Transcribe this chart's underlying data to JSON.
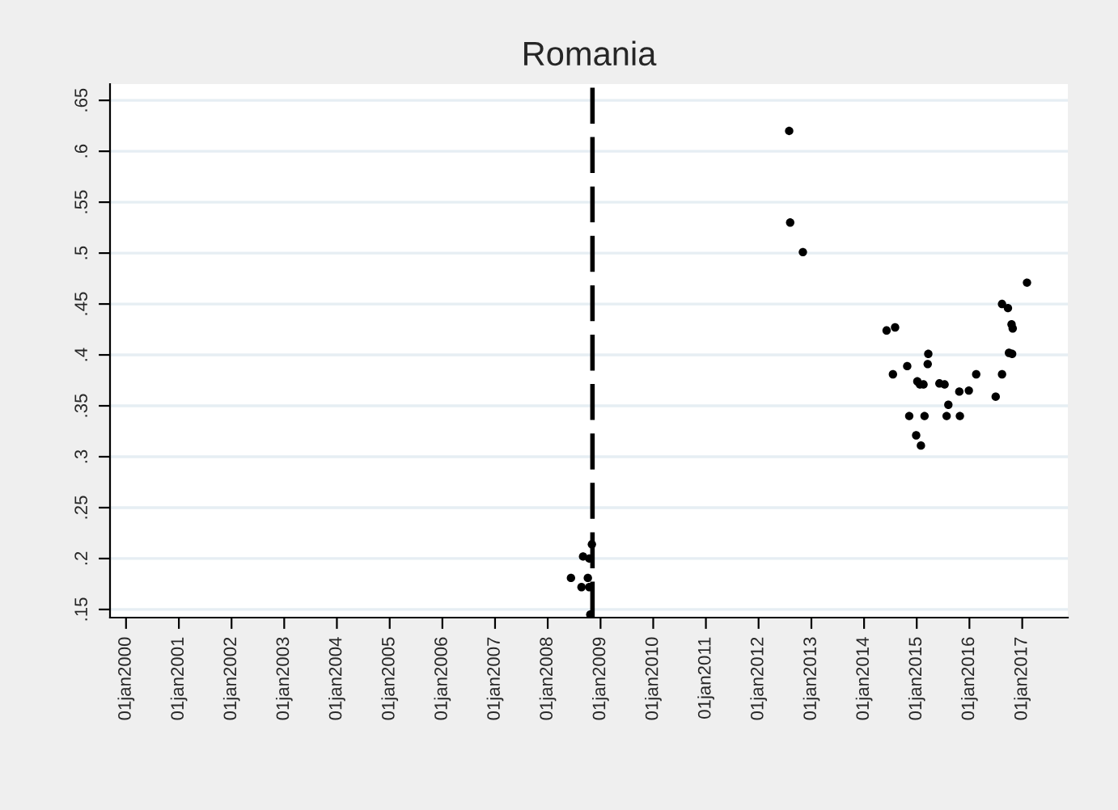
{
  "chart_data": {
    "type": "scatter",
    "title": "Romania",
    "marker": "circle",
    "grid": "y",
    "series": [
      {
        "color": "#000000",
        "x": [
          "2008-06-10",
          "2008-09-02",
          "2008-08-22",
          "2008-10-05",
          "2008-10-15",
          "2008-11-02",
          "2008-10-22",
          "2008-10-15",
          "2012-07-31",
          "2012-08-07",
          "2012-11-03",
          "2017-02-03",
          "2016-08-14",
          "2016-09-24",
          "2016-10-19",
          "2016-10-27",
          "2016-10-01",
          "2016-10-23",
          "2016-08-14",
          "2016-07-01",
          "2014-06-06",
          "2014-08-04",
          "2015-03-22",
          "2015-03-18",
          "2014-07-20",
          "2014-10-27",
          "2015-01-05",
          "2015-01-23",
          "2015-02-17",
          "2015-06-07",
          "2015-07-13",
          "2015-10-23",
          "2015-12-28",
          "2016-02-17",
          "2015-08-08",
          "2014-11-10",
          "2015-02-24",
          "2015-07-27",
          "2015-10-27",
          "2014-12-28",
          "2015-01-30"
        ],
        "values": [
          0.181,
          0.202,
          0.172,
          0.181,
          0.2,
          0.214,
          0.145,
          0.172,
          0.62,
          0.53,
          0.501,
          0.471,
          0.45,
          0.446,
          0.43,
          0.426,
          0.402,
          0.401,
          0.381,
          0.359,
          0.424,
          0.427,
          0.401,
          0.391,
          0.381,
          0.389,
          0.374,
          0.371,
          0.371,
          0.372,
          0.371,
          0.364,
          0.365,
          0.381,
          0.351,
          0.34,
          0.34,
          0.34,
          0.34,
          0.321,
          0.311
        ]
      }
    ],
    "xlim": [
      "1999-09-12",
      "2017-11-13"
    ],
    "xticks": [
      {
        "value": "2000-01-01",
        "label": "01jan2000"
      },
      {
        "value": "2001-01-01",
        "label": "01jan2001"
      },
      {
        "value": "2002-01-01",
        "label": "01jan2002"
      },
      {
        "value": "2003-01-01",
        "label": "01jan2003"
      },
      {
        "value": "2004-01-01",
        "label": "01jan2004"
      },
      {
        "value": "2005-01-01",
        "label": "01jan2005"
      },
      {
        "value": "2006-01-01",
        "label": "01jan2006"
      },
      {
        "value": "2007-01-01",
        "label": "01jan2007"
      },
      {
        "value": "2008-01-01",
        "label": "01jan2008"
      },
      {
        "value": "2009-01-01",
        "label": "01jan2009"
      },
      {
        "value": "2010-01-01",
        "label": "01jan2010"
      },
      {
        "value": "2011-01-01",
        "label": "01jan2011"
      },
      {
        "value": "2012-01-01",
        "label": "01jan2012"
      },
      {
        "value": "2013-01-01",
        "label": "01jan2013"
      },
      {
        "value": "2014-01-01",
        "label": "01jan2014"
      },
      {
        "value": "2015-01-01",
        "label": "01jan2015"
      },
      {
        "value": "2016-01-01",
        "label": "01jan2016"
      },
      {
        "value": "2017-01-01",
        "label": "01jan2017"
      }
    ],
    "ylim": [
      0.142,
      0.666
    ],
    "yticks": [
      {
        "value": 0.15,
        "label": ".15"
      },
      {
        "value": 0.2,
        "label": ".2"
      },
      {
        "value": 0.25,
        "label": ".25"
      },
      {
        "value": 0.3,
        "label": ".3"
      },
      {
        "value": 0.35,
        "label": ".35"
      },
      {
        "value": 0.4,
        "label": ".4"
      },
      {
        "value": 0.45,
        "label": ".45"
      },
      {
        "value": 0.5,
        "label": ".5"
      },
      {
        "value": 0.55,
        "label": ".55"
      },
      {
        "value": 0.6,
        "label": ".6"
      },
      {
        "value": 0.65,
        "label": ".65"
      }
    ],
    "ref_lines": [
      {
        "axis": "x",
        "value": "2008-11-06",
        "color": "#000000",
        "line_style": "dashed"
      }
    ]
  }
}
